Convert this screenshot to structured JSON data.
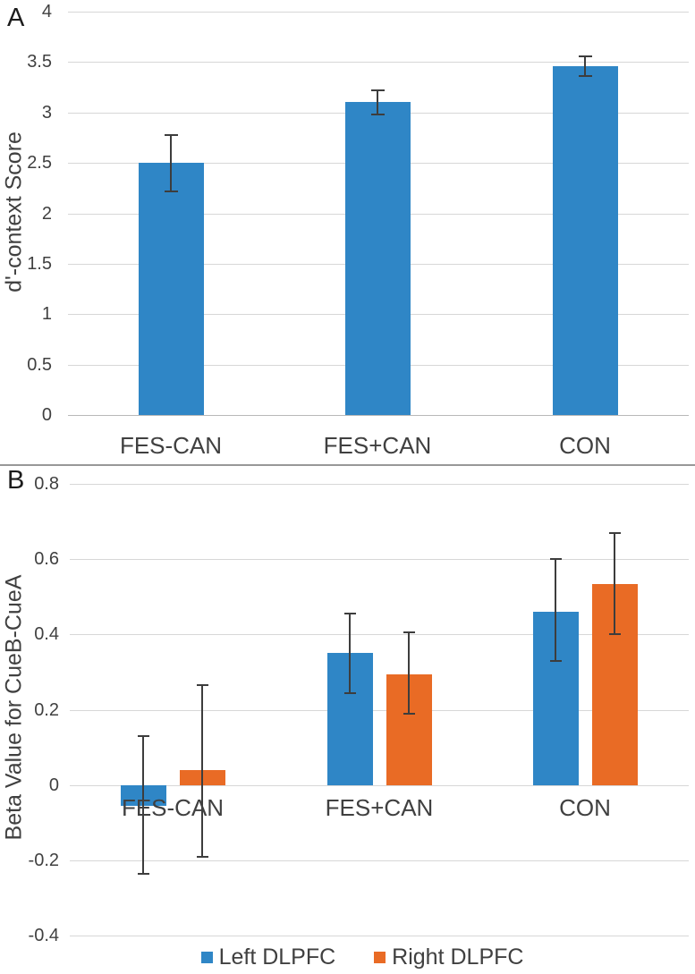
{
  "chart_data": [
    {
      "panel_label": "A",
      "type": "bar",
      "title": "",
      "xlabel": "",
      "ylabel": "d'-context Score",
      "ylim": [
        0,
        4
      ],
      "ytick_step": 0.5,
      "grid": true,
      "categories": [
        "FES-CAN",
        "FES+CAN",
        "CON"
      ],
      "yticks": [
        {
          "value": 4,
          "label": "4"
        },
        {
          "value": 3.5,
          "label": "3.5"
        },
        {
          "value": 3,
          "label": "3"
        },
        {
          "value": 2.5,
          "label": "2.5"
        },
        {
          "value": 2,
          "label": "2"
        },
        {
          "value": 1.5,
          "label": "1.5"
        },
        {
          "value": 1,
          "label": "1"
        },
        {
          "value": 0.5,
          "label": "0.5"
        },
        {
          "value": 0,
          "label": "0"
        }
      ],
      "series": [
        {
          "name": "d'-context Score",
          "color": "#2F86C6",
          "values": [
            2.5,
            3.1,
            3.46
          ],
          "err_low": [
            2.22,
            2.98,
            3.36
          ],
          "err_high": [
            2.78,
            3.22,
            3.56
          ]
        }
      ]
    },
    {
      "panel_label": "B",
      "type": "grouped-bar",
      "title": "",
      "xlabel": "",
      "ylabel": "Beta Value for CueB-CueA",
      "ylim": [
        -0.4,
        0.8
      ],
      "ytick_step": 0.2,
      "grid": true,
      "legend_position": "bottom",
      "categories": [
        "FES-CAN",
        "FES+CAN",
        "CON"
      ],
      "yticks": [
        {
          "value": 0.8,
          "label": "0.8"
        },
        {
          "value": 0.6,
          "label": "0.6"
        },
        {
          "value": 0.4,
          "label": "0.4"
        },
        {
          "value": 0.2,
          "label": "0.2"
        },
        {
          "value": 0,
          "label": "0"
        },
        {
          "value": -0.2,
          "label": "-0.2"
        },
        {
          "value": -0.4,
          "label": "-0.4"
        }
      ],
      "series": [
        {
          "name": "Left DLPFC",
          "color": "#2F86C6",
          "values": [
            -0.055,
            0.35,
            0.46
          ],
          "err_low": [
            -0.235,
            0.245,
            0.33
          ],
          "err_high": [
            0.13,
            0.455,
            0.6
          ]
        },
        {
          "name": "Right DLPFC",
          "color": "#E96B25",
          "values": [
            0.04,
            0.295,
            0.535
          ],
          "err_low": [
            -0.19,
            0.19,
            0.4
          ],
          "err_high": [
            0.265,
            0.405,
            0.67
          ]
        }
      ],
      "legend": {
        "items": [
          {
            "label": "Left DLPFC",
            "color": "#2F86C6"
          },
          {
            "label": "Right DLPFC",
            "color": "#E96B25"
          }
        ]
      }
    }
  ]
}
